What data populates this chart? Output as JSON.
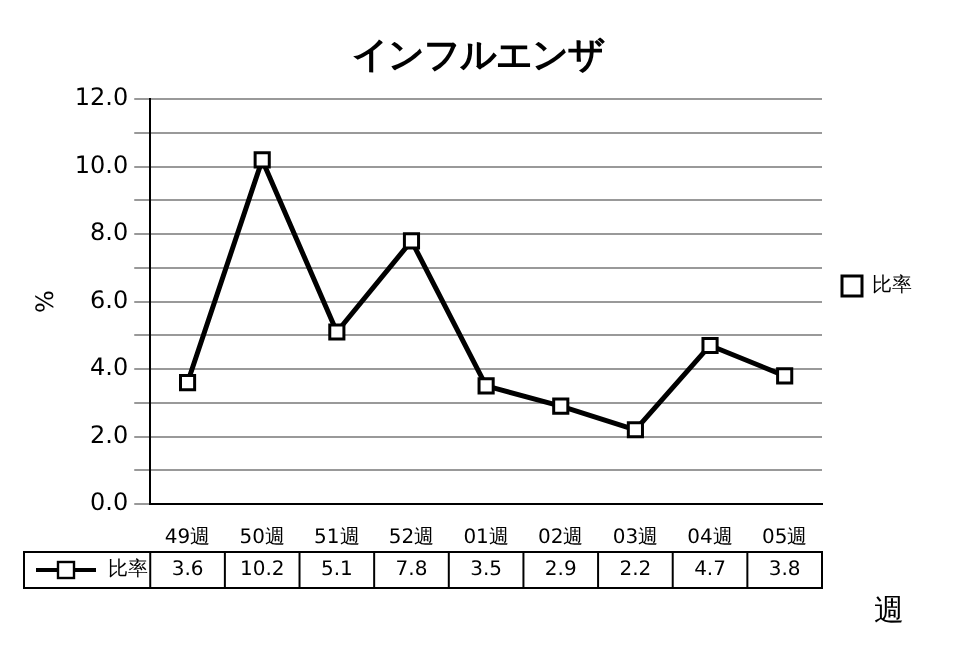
{
  "chart_data": {
    "type": "line",
    "title": "インフルエンザ",
    "ylabel": "%",
    "xlabel": "週",
    "categories": [
      "49週",
      "50週",
      "51週",
      "52週",
      "01週",
      "02週",
      "03週",
      "04週",
      "05週"
    ],
    "series": [
      {
        "name": "比率",
        "color": "#000000",
        "values": [
          3.6,
          10.2,
          5.1,
          7.8,
          3.5,
          2.9,
          2.2,
          4.7,
          3.8
        ]
      }
    ],
    "ylim": [
      0,
      12
    ],
    "yticks": [
      {
        "value": 0,
        "label": "0.0"
      },
      {
        "value": 1,
        "label": null
      },
      {
        "value": 2,
        "label": "2.0"
      },
      {
        "value": 3,
        "label": null
      },
      {
        "value": 4,
        "label": "4.0"
      },
      {
        "value": 5,
        "label": null
      },
      {
        "value": 6,
        "label": "6.0"
      },
      {
        "value": 7,
        "label": null
      },
      {
        "value": 8,
        "label": "8.0"
      },
      {
        "value": 9,
        "label": null
      },
      {
        "value": 10,
        "label": "10.0"
      },
      {
        "value": 11,
        "label": null
      },
      {
        "value": 12,
        "label": "12.0"
      }
    ],
    "grid": "y",
    "legend": "right",
    "marker": "square",
    "line_style": "solid",
    "data_labels": true
  }
}
